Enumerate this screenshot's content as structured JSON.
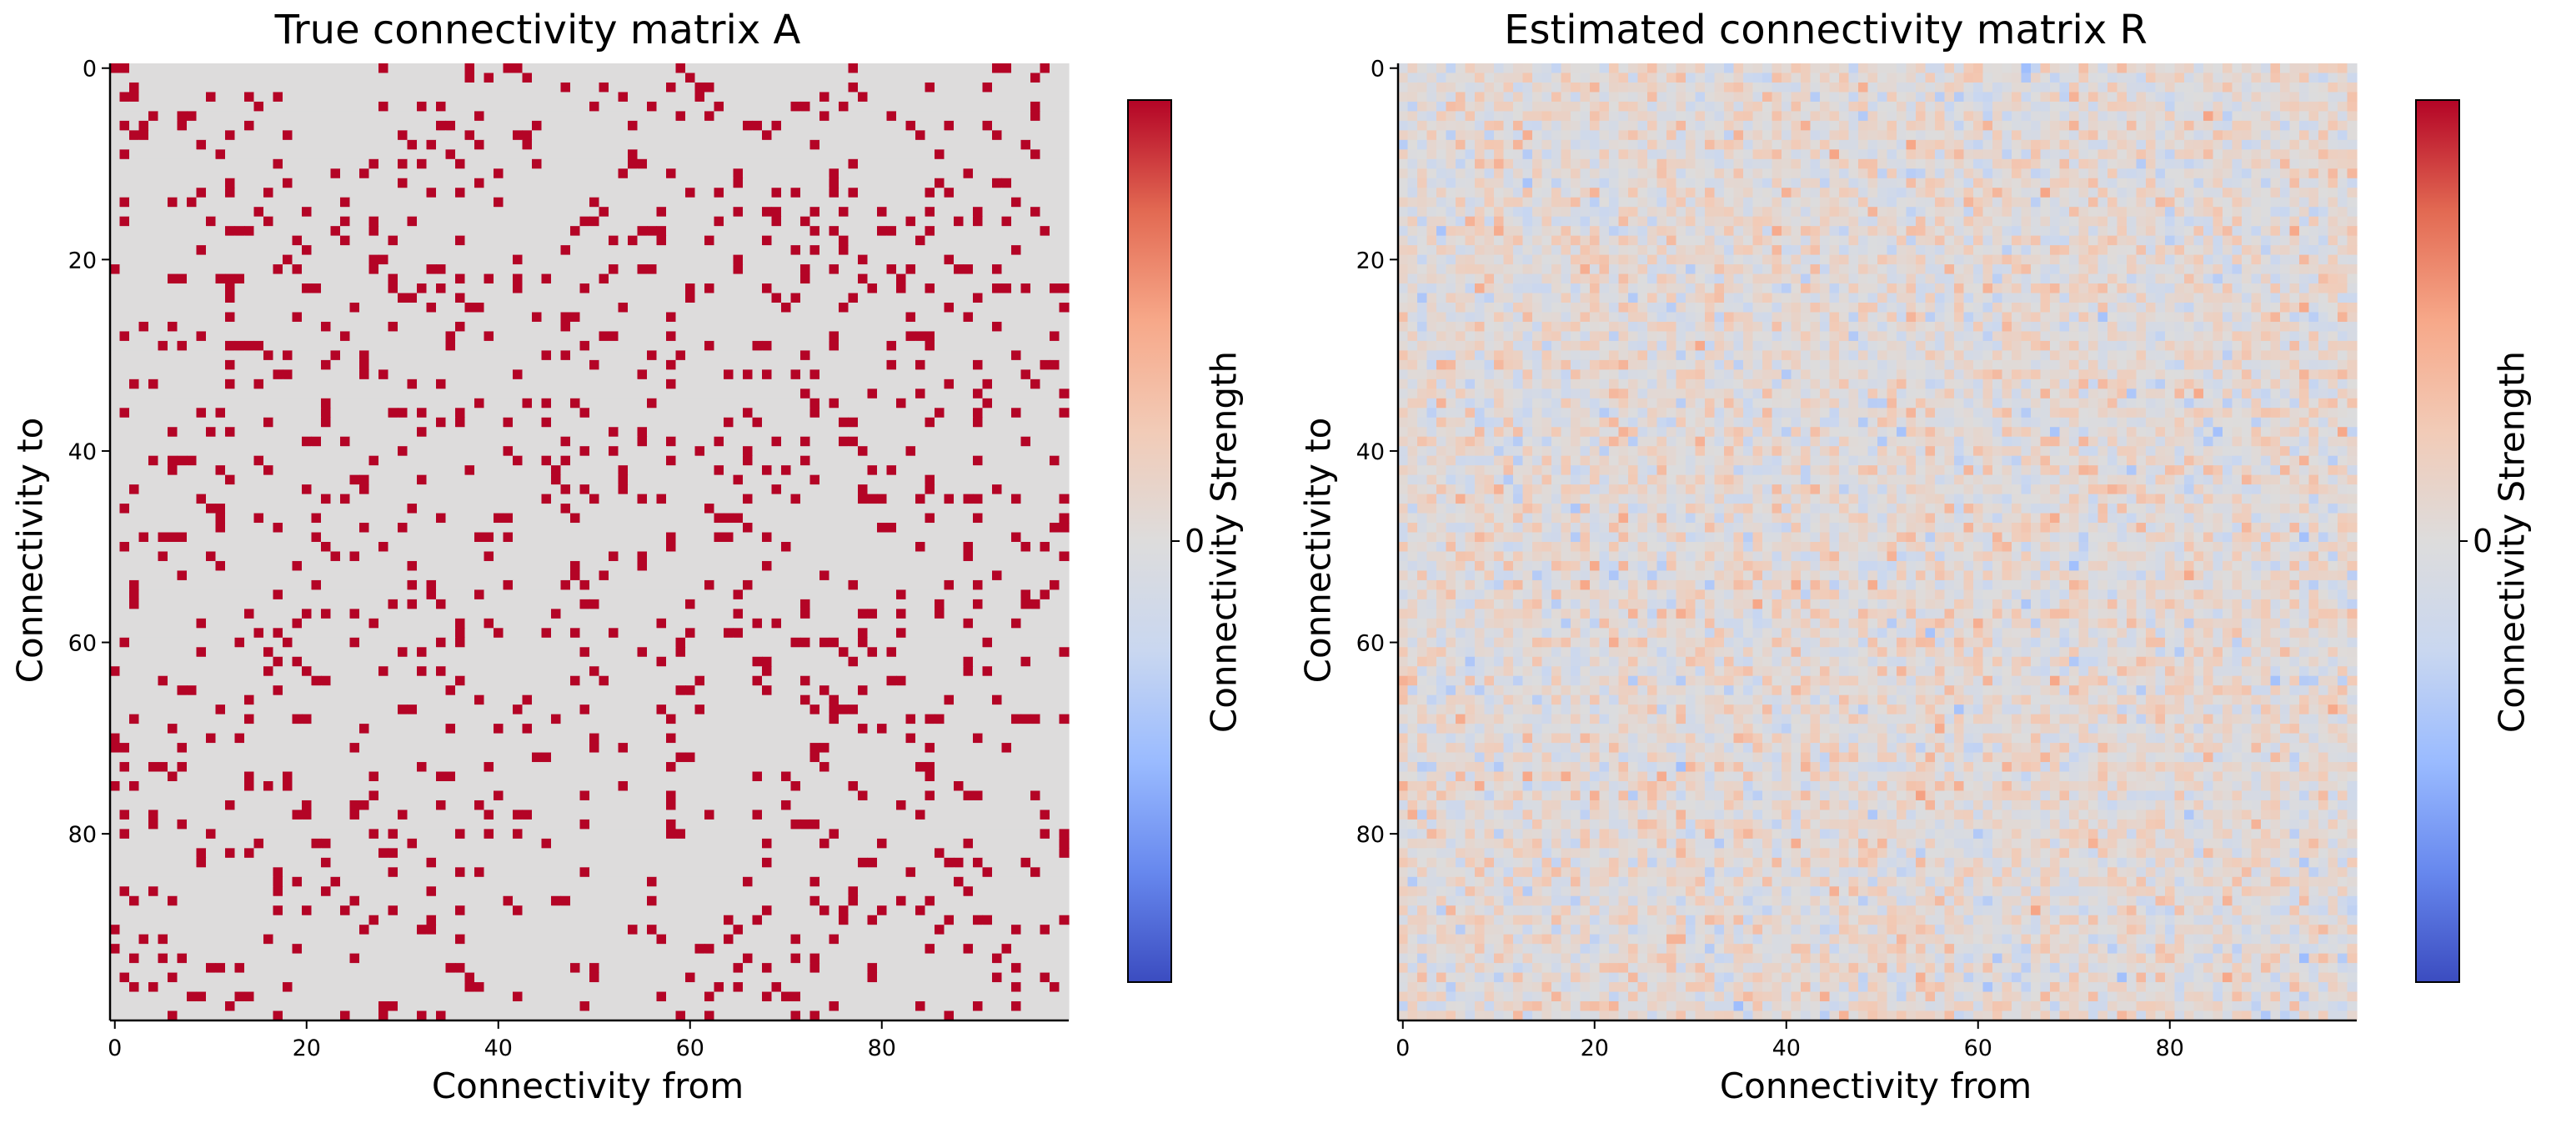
{
  "chart_data": [
    {
      "type": "heatmap",
      "title": "True connectivity matrix A",
      "xlabel": "Connectivity from",
      "ylabel": "Connectivity to",
      "matrix_size": 100,
      "xticks": [
        0,
        20,
        40,
        60,
        80
      ],
      "yticks": [
        0,
        20,
        40,
        60,
        80
      ],
      "xlim": [
        -0.5,
        99.5
      ],
      "ylim": [
        99.5,
        -0.5
      ],
      "colormap": "coolwarm",
      "colorbar": {
        "label": "Connectivity Strength",
        "ticks": [
          0
        ],
        "tick_labels": [
          "0"
        ]
      },
      "values_description_kind": "binary sparse matrix (1 = connection, 0 = none), ~10% density",
      "density": 0.1,
      "random_seed": 7,
      "value_colors": {
        "zero": "#dddcdc",
        "positive": "#b40426"
      }
    },
    {
      "type": "heatmap",
      "title": "Estimated connectivity matrix R",
      "xlabel": "Connectivity from",
      "ylabel": "Connectivity to",
      "matrix_size": 100,
      "xticks": [
        0,
        20,
        40,
        60,
        80
      ],
      "yticks": [
        0,
        20,
        40,
        60,
        80
      ],
      "xlim": [
        -0.5,
        99.5
      ],
      "ylim": [
        99.5,
        -0.5
      ],
      "colormap": "coolwarm",
      "colorbar": {
        "label": "Connectivity Strength",
        "ticks": [
          0
        ],
        "tick_labels": [
          "0"
        ]
      },
      "values_description_kind": "dense noisy estimate, values mostly within ±0.35 of range",
      "value_range": [
        -0.6,
        0.6
      ],
      "random_seed": 19
    }
  ],
  "colors": {
    "cmap_stops": [
      "#3b4cc0",
      "#6788ee",
      "#9abbff",
      "#c9d7f0",
      "#dddcdc",
      "#f2cbb7",
      "#f7a889",
      "#e26952",
      "#b40426"
    ],
    "axis": "#000000"
  }
}
